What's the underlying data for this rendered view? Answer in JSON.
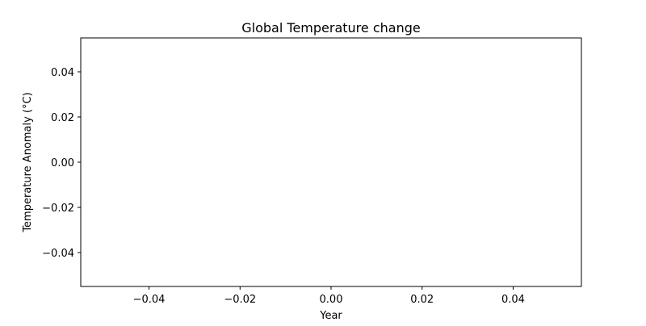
{
  "chart_data": {
    "type": "line",
    "title": "Global Temperature change",
    "xlabel": "Year",
    "ylabel": "Temperature Anomaly (°C)",
    "xlim": [
      -0.055,
      0.055
    ],
    "ylim": [
      -0.055,
      0.055
    ],
    "xticks": [
      -0.04,
      -0.02,
      0.0,
      0.02,
      0.04
    ],
    "xtick_labels": [
      "−0.04",
      "−0.02",
      "0.00",
      "0.02",
      "0.04"
    ],
    "yticks": [
      -0.04,
      -0.02,
      0.0,
      0.02,
      0.04
    ],
    "ytick_labels": [
      "−0.04",
      "−0.02",
      "0.00",
      "0.02",
      "0.04"
    ],
    "grid": false,
    "series": [
      {
        "x": [],
        "y": []
      }
    ],
    "colors": {
      "axes": "#000000",
      "background": "#ffffff"
    }
  }
}
